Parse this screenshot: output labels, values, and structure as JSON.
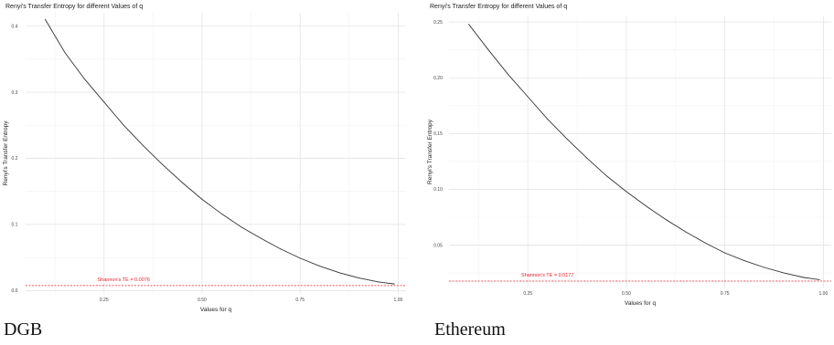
{
  "chart_data": [
    {
      "type": "line",
      "title": "Renyi's Transfer Entropy for different Values of q",
      "xlabel": "Values for q",
      "ylabel": "Renyi's Transfer Entropy",
      "xlim": [
        0.05,
        1.02
      ],
      "ylim": [
        -0.005,
        0.42
      ],
      "x_ticks": [
        0.25,
        0.5,
        0.75,
        1.0
      ],
      "x_tick_labels": [
        "0.25",
        "0.50",
        "0.75",
        "1.00"
      ],
      "y_ticks": [
        0,
        0.1,
        0.2,
        0.3,
        0.4
      ],
      "y_tick_labels": [
        "0.0",
        "0.1",
        "0.2",
        "0.3",
        "0.4"
      ],
      "grid": true,
      "series": [
        {
          "x": [
            0.1,
            0.15,
            0.2,
            0.25,
            0.3,
            0.35,
            0.4,
            0.45,
            0.5,
            0.55,
            0.6,
            0.65,
            0.7,
            0.75,
            0.8,
            0.85,
            0.9,
            0.95,
            0.99
          ],
          "values": [
            0.41,
            0.36,
            0.32,
            0.285,
            0.25,
            0.219,
            0.19,
            0.163,
            0.138,
            0.116,
            0.096,
            0.079,
            0.063,
            0.049,
            0.037,
            0.027,
            0.019,
            0.013,
            0.01
          ]
        }
      ],
      "reference_line": {
        "y": 0.0076,
        "label": "Shannon's TE = 0.0076",
        "color": "#e8212b"
      },
      "line_color": "#333333"
    },
    {
      "type": "line",
      "title": "Renyi's Transfer Entropy for different Values of q",
      "xlabel": "Values for q",
      "ylabel": "Renyi's Transfer Entropy",
      "xlim": [
        0.05,
        1.02
      ],
      "ylim": [
        0.012,
        0.255
      ],
      "x_ticks": [
        0.25,
        0.5,
        0.75,
        1.0
      ],
      "x_tick_labels": [
        "0.25",
        "0.50",
        "0.75",
        "1.00"
      ],
      "y_ticks": [
        0.05,
        0.1,
        0.15,
        0.2,
        0.25
      ],
      "y_tick_labels": [
        "0.05",
        "0.10",
        "0.15",
        "0.20",
        "0.25"
      ],
      "grid": true,
      "series": [
        {
          "x": [
            0.1,
            0.15,
            0.2,
            0.25,
            0.3,
            0.35,
            0.4,
            0.45,
            0.5,
            0.55,
            0.6,
            0.65,
            0.7,
            0.75,
            0.8,
            0.85,
            0.9,
            0.95,
            0.99
          ],
          "values": [
            0.248,
            0.225,
            0.203,
            0.183,
            0.163,
            0.145,
            0.128,
            0.112,
            0.098,
            0.085,
            0.073,
            0.062,
            0.052,
            0.043,
            0.036,
            0.03,
            0.025,
            0.021,
            0.019
          ]
        }
      ],
      "reference_line": {
        "y": 0.0177,
        "label": "Shannon's TE = 0.0177",
        "color": "#e8212b"
      },
      "line_color": "#333333"
    }
  ],
  "captions": {
    "left": "DGB",
    "right": "Ethereum"
  }
}
